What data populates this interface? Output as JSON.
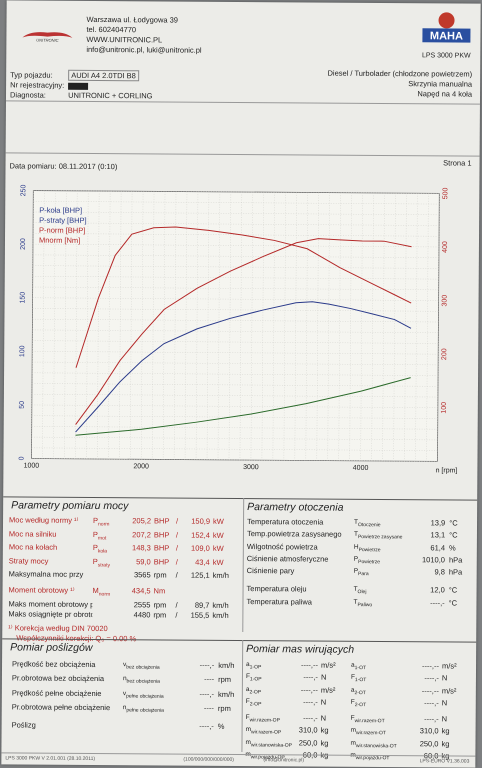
{
  "header": {
    "company": "UNITRONIC",
    "address": "Warszawa ul. Łodygowa 39",
    "tel": "tel. 602404770",
    "www": "WWW.UNITRONIC.PL",
    "email": "info@unitronic.pl, luki@unitronic.pl",
    "brand_right": "MAHA",
    "model_right": "LPS 3000 PKW"
  },
  "vehicle": {
    "type_label": "Typ pojazdu:",
    "type_value": "AUDI A4 2.0TDI B8",
    "reg_label": "Nr rejestracyjny:",
    "reg_value": "",
    "diag_label": "Diagnosta:",
    "diag_value": "UNITRONIC + CORLING",
    "engine": "Diesel / Turbolader (chłodzone powietrzem)",
    "gearbox": "Skrzynia manualna",
    "drive": "Napęd na 4 koła"
  },
  "date_line": "Data pomiaru: 08.11.2017 (0:10)",
  "page_label": "Strona 1",
  "chart_data": {
    "type": "line",
    "x_label": "n [rpm]",
    "xlim": [
      1000,
      4700
    ],
    "x_ticks": [
      "1000",
      "2000",
      "3000",
      "4000"
    ],
    "ylim_left": [
      0,
      250
    ],
    "y_ticks_left": [
      "0",
      "50",
      "100",
      "150",
      "200",
      "250"
    ],
    "ylim_right": [
      0,
      500
    ],
    "y_ticks_right": [
      "100",
      "200",
      "300",
      "400",
      "500"
    ],
    "legend": [
      "P-koła [BHP]",
      "P-straty [BHP]",
      "P-norm [BHP]",
      "Mnorm [Nm]"
    ],
    "series": [
      {
        "name": "P-koła [BHP]",
        "color": "#2a3a8a",
        "axis": "left",
        "x": [
          1400,
          1600,
          1800,
          2000,
          2200,
          2500,
          2800,
          3100,
          3400,
          3550,
          3700,
          3900,
          4100,
          4300,
          4450
        ],
        "y": [
          25,
          48,
          72,
          92,
          108,
          122,
          132,
          140,
          147,
          148,
          146,
          142,
          137,
          132,
          124
        ]
      },
      {
        "name": "P-straty [BHP]",
        "color": "#2a6a2a",
        "axis": "left",
        "x": [
          1400,
          2000,
          2500,
          3000,
          3500,
          4000,
          4450
        ],
        "y": [
          22,
          28,
          35,
          43,
          53,
          65,
          78
        ]
      },
      {
        "name": "P-norm [BHP]",
        "color": "#b42828",
        "axis": "left",
        "x": [
          1400,
          1600,
          1800,
          2000,
          2200,
          2500,
          2800,
          3100,
          3400,
          3600,
          3800,
          4000,
          4200,
          4450
        ],
        "y": [
          32,
          60,
          92,
          117,
          140,
          160,
          176,
          190,
          203,
          207,
          206,
          205,
          205,
          200
        ]
      },
      {
        "name": "Mnorm [Nm]",
        "color": "#b42828",
        "axis": "right",
        "x": [
          1400,
          1600,
          1750,
          1900,
          2100,
          2300,
          2600,
          2900,
          3200,
          3500,
          3800,
          4100,
          4300,
          4450
        ],
        "y": [
          170,
          300,
          380,
          420,
          432,
          434,
          428,
          420,
          410,
          395,
          360,
          330,
          310,
          295
        ]
      }
    ]
  },
  "power": {
    "title": "Parametry pomiaru mocy",
    "rows": [
      {
        "label": "Moc według normy ¹⁾",
        "sym": "Pnorm",
        "v1": "205,2",
        "u1": "BHP",
        "sep": "/",
        "v2": "150,9",
        "u2": "kW"
      },
      {
        "label": "Moc na silniku",
        "sym": "Pmot",
        "v1": "207,2",
        "u1": "BHP",
        "sep": "/",
        "v2": "152,4",
        "u2": "kW"
      },
      {
        "label": "Moc na kołach",
        "sym": "Pkoła",
        "v1": "148,3",
        "u1": "BHP",
        "sep": "/",
        "v2": "109,0",
        "u2": "kW"
      },
      {
        "label": "Straty mocy",
        "sym": "Pstraty",
        "v1": "59,0",
        "u1": "BHP",
        "sep": "/",
        "v2": "43,4",
        "u2": "kW"
      },
      {
        "label": "Maksymalna moc przy",
        "sym": "",
        "v1": "3565",
        "u1": "rpm",
        "sep": "/",
        "v2": "125,1",
        "u2": "km/h"
      }
    ],
    "torque_rows": [
      {
        "label": "Moment obrotowy ¹⁾",
        "sym": "Mnorm",
        "v1": "434,5",
        "u1": "Nm",
        "sep": "",
        "v2": "",
        "u2": ""
      },
      {
        "label": "Maks moment obrotowy przy",
        "sym": "",
        "v1": "2555",
        "u1": "rpm",
        "sep": "/",
        "v2": "89,7",
        "u2": "km/h"
      },
      {
        "label": "Maks osiągnięte pr obrotowa",
        "sym": "",
        "v1": "4480",
        "u1": "rpm",
        "sep": "/",
        "v2": "155,5",
        "u2": "km/h"
      }
    ],
    "note1": "¹⁾ Korekcja według DIN 70020",
    "note2": "Współczynniki korekcji: Q₀ = 0.00 %"
  },
  "env": {
    "title": "Parametry otoczenia",
    "rows": [
      {
        "label": "Temperatura otoczenia",
        "sym": "TOtoczenie",
        "val": "13,9",
        "unit": "°C"
      },
      {
        "label": "Temp.powietrza zasysanego",
        "sym": "TPowietrze zasysane",
        "val": "13,1",
        "unit": "°C"
      },
      {
        "label": "Wilgotność powietrza",
        "sym": "HPowietrze",
        "val": "61,4",
        "unit": "%"
      },
      {
        "label": "Ciśnienie atmosferyczne",
        "sym": "PPowietrze",
        "val": "1010,0",
        "unit": "hPa"
      },
      {
        "label": "Ciśnienie pary",
        "sym": "PPara",
        "val": "9,8",
        "unit": "hPa"
      },
      {
        "label": "Temperatura oleju",
        "sym": "TOlej",
        "val": "12,0",
        "unit": "°C"
      },
      {
        "label": "Temperatura paliwa",
        "sym": "TPaliwo",
        "val": "----,-",
        "unit": "°C"
      }
    ]
  },
  "slip": {
    "title": "Pomiar poślizgów",
    "rows": [
      {
        "label": "Prędkość bez obciążenia",
        "sym": "vbez obciążenia",
        "val": "----,-",
        "unit": "km/h"
      },
      {
        "label": "Pr.obrotowa bez obciążenia",
        "sym": "nbez obciążenia",
        "val": "----",
        "unit": "rpm"
      },
      {
        "label": "Prędkość pełne obciążenie",
        "sym": "vpełne obciążenia",
        "val": "----,-",
        "unit": "km/h"
      },
      {
        "label": "Pr.obrotowa pełne obciążenie",
        "sym": "npełne obciążenia",
        "val": "----",
        "unit": "rpm"
      },
      {
        "label": "Poślizg",
        "sym": "",
        "val": "----,-",
        "unit": "%"
      }
    ]
  },
  "mass": {
    "title": "Pomiar mas wirujących",
    "left": [
      {
        "sym": "a1-OP",
        "val": "----,--",
        "unit": "m/s²"
      },
      {
        "sym": "F1-OP",
        "val": "----,-",
        "unit": "N"
      },
      {
        "sym": "a2-OP",
        "val": "----,--",
        "unit": "m/s²"
      },
      {
        "sym": "F2-OP",
        "val": "----,-",
        "unit": "N"
      },
      {
        "sym": "Fwir.razem-OP",
        "val": "----,-",
        "unit": "N"
      },
      {
        "sym": "mwir.razem-OP",
        "val": "310,0",
        "unit": "kg"
      },
      {
        "sym": "mwir.stanowiska-OP",
        "val": "250,0",
        "unit": "kg"
      },
      {
        "sym": "mwir.pojazdu-OP",
        "val": "60,0",
        "unit": "kg"
      }
    ],
    "right": [
      {
        "sym": "a1-OT",
        "val": "----,--",
        "unit": "m/s²"
      },
      {
        "sym": "F1-OT",
        "val": "----,-",
        "unit": "N"
      },
      {
        "sym": "a2-OT",
        "val": "----,--",
        "unit": "m/s²"
      },
      {
        "sym": "F2-OT",
        "val": "----,-",
        "unit": "N"
      },
      {
        "sym": "Fwir.razem-OT",
        "val": "----,-",
        "unit": "N"
      },
      {
        "sym": "mwir.razem-OT",
        "val": "310,0",
        "unit": "kg"
      },
      {
        "sym": "mwir.stanowiska-OT",
        "val": "250,0",
        "unit": "kg"
      },
      {
        "sym": "mwir.pojazdu-OT",
        "val": "60,0",
        "unit": "kg"
      }
    ]
  },
  "footer": {
    "left": "LPS 3000 PKW V 2.01.001 (28.10.2011)",
    "mid1": "(100/000/000/000/000)",
    "mid2": "(info@unitronic.pl)",
    "right": "LPS-EURO V1.36.003"
  }
}
